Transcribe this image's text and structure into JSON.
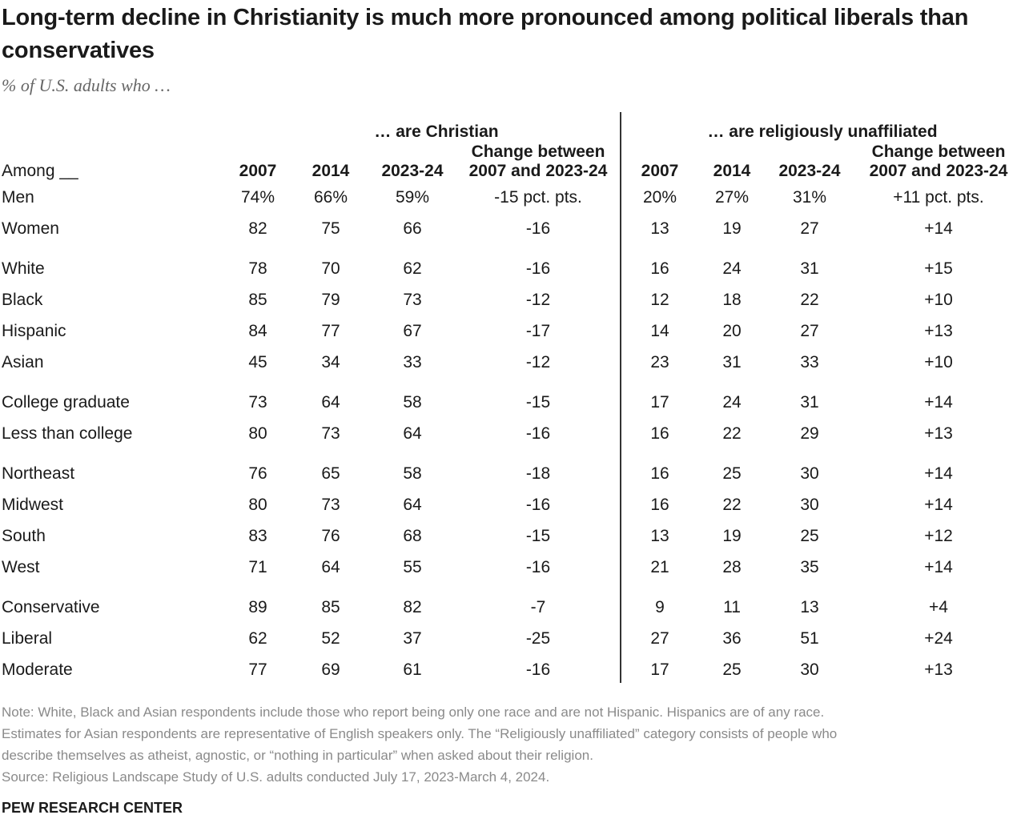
{
  "header": {
    "title": "Long-term decline in Christianity is much more pronounced among political liberals than conservatives",
    "subtitle": "% of U.S. adults who …"
  },
  "table": {
    "group_headers": [
      "… are Christian",
      "… are religiously unaffiliated"
    ],
    "columns": [
      "Among __",
      "2007",
      "2014",
      "2023-24",
      "Change between 2007 and 2023-24",
      "2007",
      "2014",
      "2023-24",
      "Change between 2007 and 2023-24"
    ],
    "groups": [
      [
        [
          "Men",
          "74%",
          "66%",
          "59%",
          "-15 pct. pts.",
          "20%",
          "27%",
          "31%",
          "+11 pct. pts."
        ],
        [
          "Women",
          "82",
          "75",
          "66",
          "-16",
          "13",
          "19",
          "27",
          "+14"
        ]
      ],
      [
        [
          "White",
          "78",
          "70",
          "62",
          "-16",
          "16",
          "24",
          "31",
          "+15"
        ],
        [
          "Black",
          "85",
          "79",
          "73",
          "-12",
          "12",
          "18",
          "22",
          "+10"
        ],
        [
          "Hispanic",
          "84",
          "77",
          "67",
          "-17",
          "14",
          "20",
          "27",
          "+13"
        ],
        [
          "Asian",
          "45",
          "34",
          "33",
          "-12",
          "23",
          "31",
          "33",
          "+10"
        ]
      ],
      [
        [
          "College graduate",
          "73",
          "64",
          "58",
          "-15",
          "17",
          "24",
          "31",
          "+14"
        ],
        [
          "Less than college",
          "80",
          "73",
          "64",
          "-16",
          "16",
          "22",
          "29",
          "+13"
        ]
      ],
      [
        [
          "Northeast",
          "76",
          "65",
          "58",
          "-18",
          "16",
          "25",
          "30",
          "+14"
        ],
        [
          "Midwest",
          "80",
          "73",
          "64",
          "-16",
          "16",
          "22",
          "30",
          "+14"
        ],
        [
          "South",
          "83",
          "76",
          "68",
          "-15",
          "13",
          "19",
          "25",
          "+12"
        ],
        [
          "West",
          "71",
          "64",
          "55",
          "-16",
          "21",
          "28",
          "35",
          "+14"
        ]
      ],
      [
        [
          "Conservative",
          "89",
          "85",
          "82",
          "-7",
          "9",
          "11",
          "13",
          "+4"
        ],
        [
          "Liberal",
          "62",
          "52",
          "37",
          "-25",
          "27",
          "36",
          "51",
          "+24"
        ],
        [
          "Moderate",
          "77",
          "69",
          "61",
          "-16",
          "17",
          "25",
          "30",
          "+13"
        ]
      ]
    ]
  },
  "footer": {
    "notes": [
      "Note: White, Black and Asian respondents include those who report being only one race and are not Hispanic. Hispanics are of any race.",
      "Estimates for Asian respondents are representative of English speakers only. The “Religiously unaffiliated” category consists of people who",
      "describe themselves as atheist, agnostic, or “nothing in particular” when asked about their religion.",
      "Source: Religious Landscape Study of U.S. adults conducted July 17, 2023-March 4, 2024."
    ],
    "brand": "PEW RESEARCH CENTER"
  }
}
